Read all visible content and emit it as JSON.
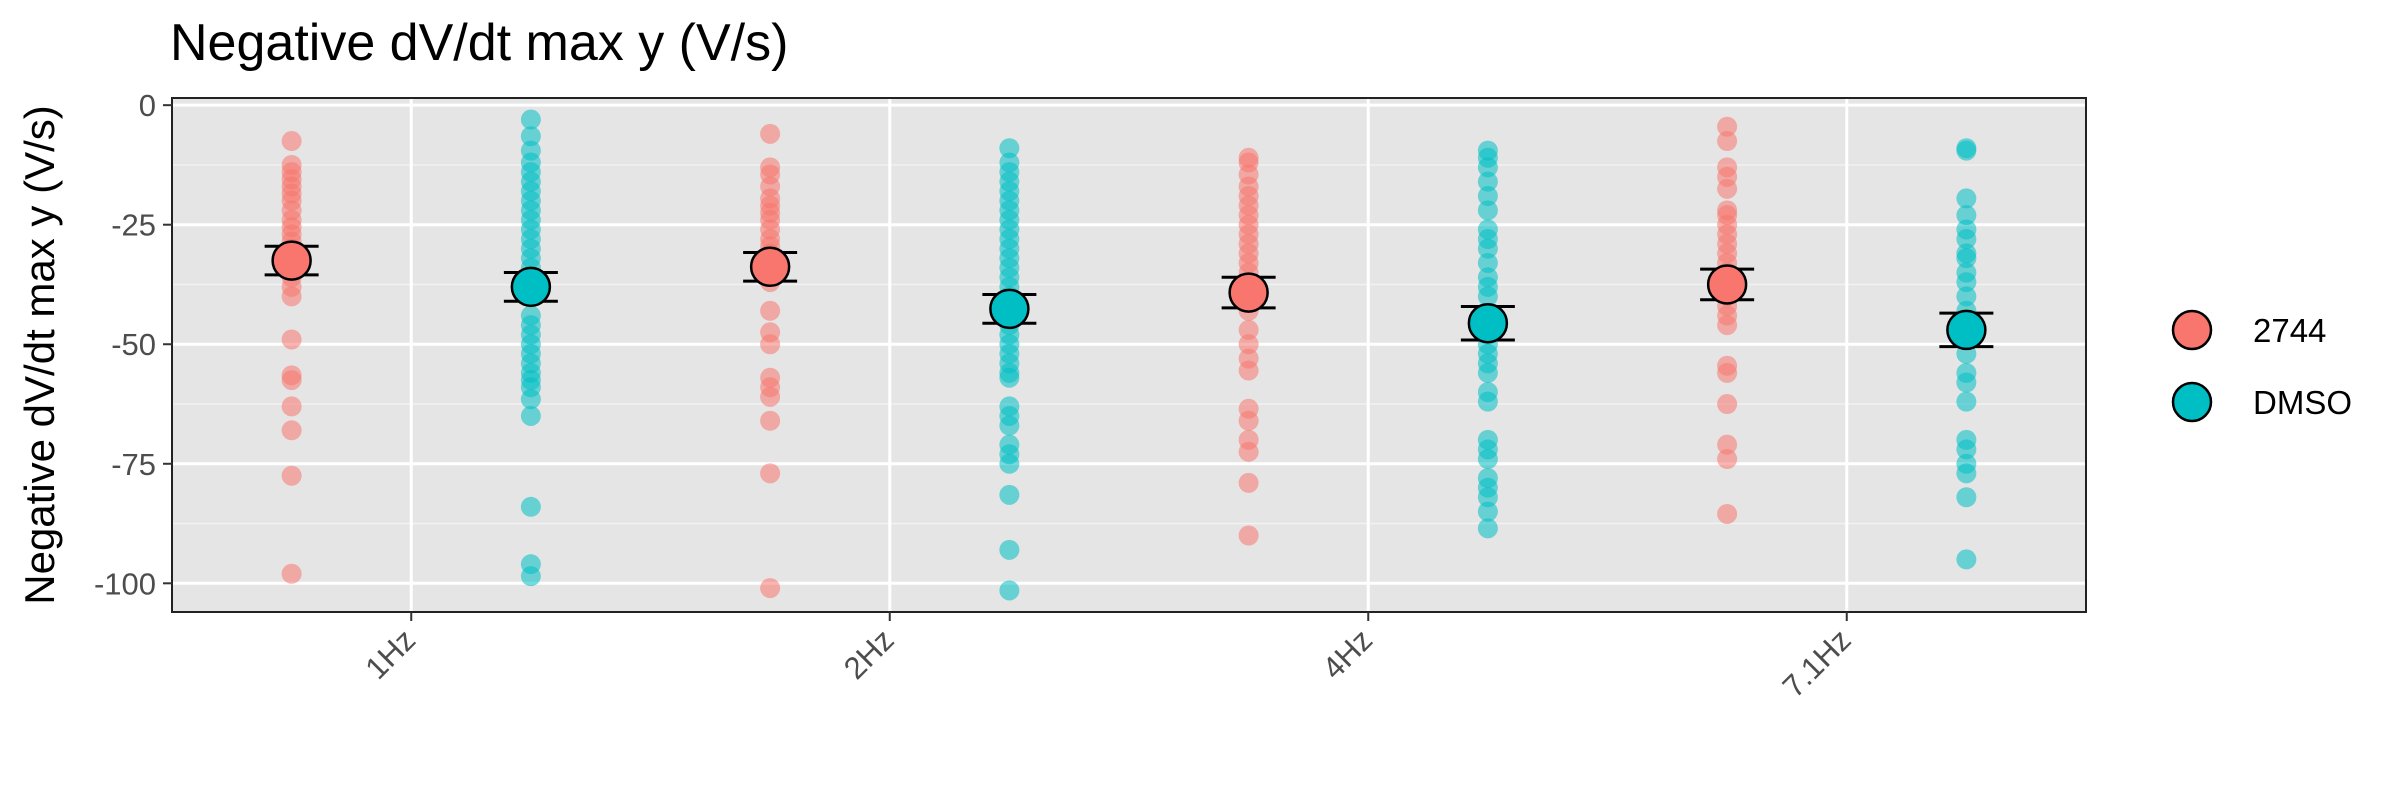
{
  "chart_data": {
    "type": "scatter",
    "title": "Negative dV/dt max y (V/s)",
    "xlabel": "",
    "ylabel": "Negative dV/dt max y (V/s)",
    "categories": [
      "1Hz",
      "2Hz",
      "4Hz",
      "7.1Hz"
    ],
    "ylim": [
      -106,
      1.5
    ],
    "yticks": [
      0,
      -25,
      -50,
      -75,
      -100
    ],
    "ytick_labels": [
      "0",
      "-25",
      "-50",
      "-75",
      "-100"
    ],
    "grid": true,
    "legend_position": "right",
    "series": [
      {
        "name": "2744",
        "color": "#F8766D",
        "means": [
          -32.5,
          -33.8,
          -39.2,
          -37.5
        ],
        "error": [
          3.0,
          3.0,
          3.2,
          3.2
        ],
        "points": [
          [
            -7.5,
            -12.5,
            -14,
            -15.5,
            -17,
            -18.5,
            -20,
            -22,
            -24,
            -25.5,
            -27,
            -28.5,
            -30,
            -32,
            -34,
            -36,
            -38,
            -40,
            -49,
            -56.5,
            -57.5,
            -63,
            -68,
            -77.5,
            -98
          ],
          [
            -6,
            -13,
            -14.5,
            -17,
            -19.5,
            -21,
            -22.5,
            -24,
            -26,
            -28,
            -29.5,
            -31,
            -33,
            -35,
            -37,
            -43,
            -47.5,
            -50,
            -57,
            -59,
            -61,
            -66,
            -77,
            -101
          ],
          [
            -11,
            -12,
            -14.5,
            -17,
            -19,
            -21,
            -23,
            -25,
            -27,
            -29,
            -31,
            -33,
            -35,
            -37,
            -40,
            -43,
            -47,
            -50,
            -53,
            -55.5,
            -63.5,
            -66,
            -70,
            -72.5,
            -79,
            -90
          ],
          [
            -4.5,
            -7.5,
            -13,
            -15,
            -17.5,
            -22,
            -23,
            -25,
            -27,
            -29,
            -31,
            -33,
            -35,
            -37.5,
            -40,
            -42,
            -44,
            -46,
            -54.5,
            -56,
            -62.5,
            -71,
            -74,
            -85.5
          ]
        ]
      },
      {
        "name": "DMSO",
        "color": "#00BFC4",
        "means": [
          -38.0,
          -42.6,
          -45.6,
          -47.0
        ],
        "error": [
          3.0,
          3.0,
          3.5,
          3.5
        ],
        "points": [
          [
            -3,
            -6.5,
            -9.5,
            -12,
            -14,
            -16,
            -18,
            -20,
            -22,
            -24,
            -26,
            -28,
            -30,
            -32,
            -34,
            -36,
            -38,
            -40,
            -44,
            -46,
            -48,
            -50,
            -52,
            -54,
            -56,
            -57.5,
            -59,
            -61.5,
            -65,
            -84,
            -96,
            -98.5
          ],
          [
            -9,
            -12,
            -14,
            -16,
            -18,
            -20,
            -22,
            -24,
            -26,
            -28,
            -30,
            -32,
            -34,
            -36,
            -38,
            -40,
            -42,
            -46,
            -48,
            -50,
            -52,
            -54,
            -56,
            -57,
            -63,
            -65,
            -67,
            -71,
            -73,
            -75,
            -81.5,
            -93,
            -101.5
          ],
          [
            -9.5,
            -11,
            -13,
            -16,
            -19,
            -22,
            -26,
            -28,
            -30,
            -33,
            -36,
            -38,
            -40,
            -44,
            -46,
            -48,
            -50,
            -52,
            -54,
            -56,
            -60,
            -62,
            -70,
            -72,
            -74,
            -78,
            -80,
            -82,
            -85,
            -88.5
          ],
          [
            -9,
            -9.5,
            -19.5,
            -23,
            -26,
            -28,
            -31,
            -32,
            -35,
            -37,
            -40,
            -43,
            -45,
            -48,
            -52,
            -56,
            -58,
            -62,
            -70,
            -72,
            -75,
            -77,
            -82,
            -95
          ]
        ]
      }
    ]
  }
}
